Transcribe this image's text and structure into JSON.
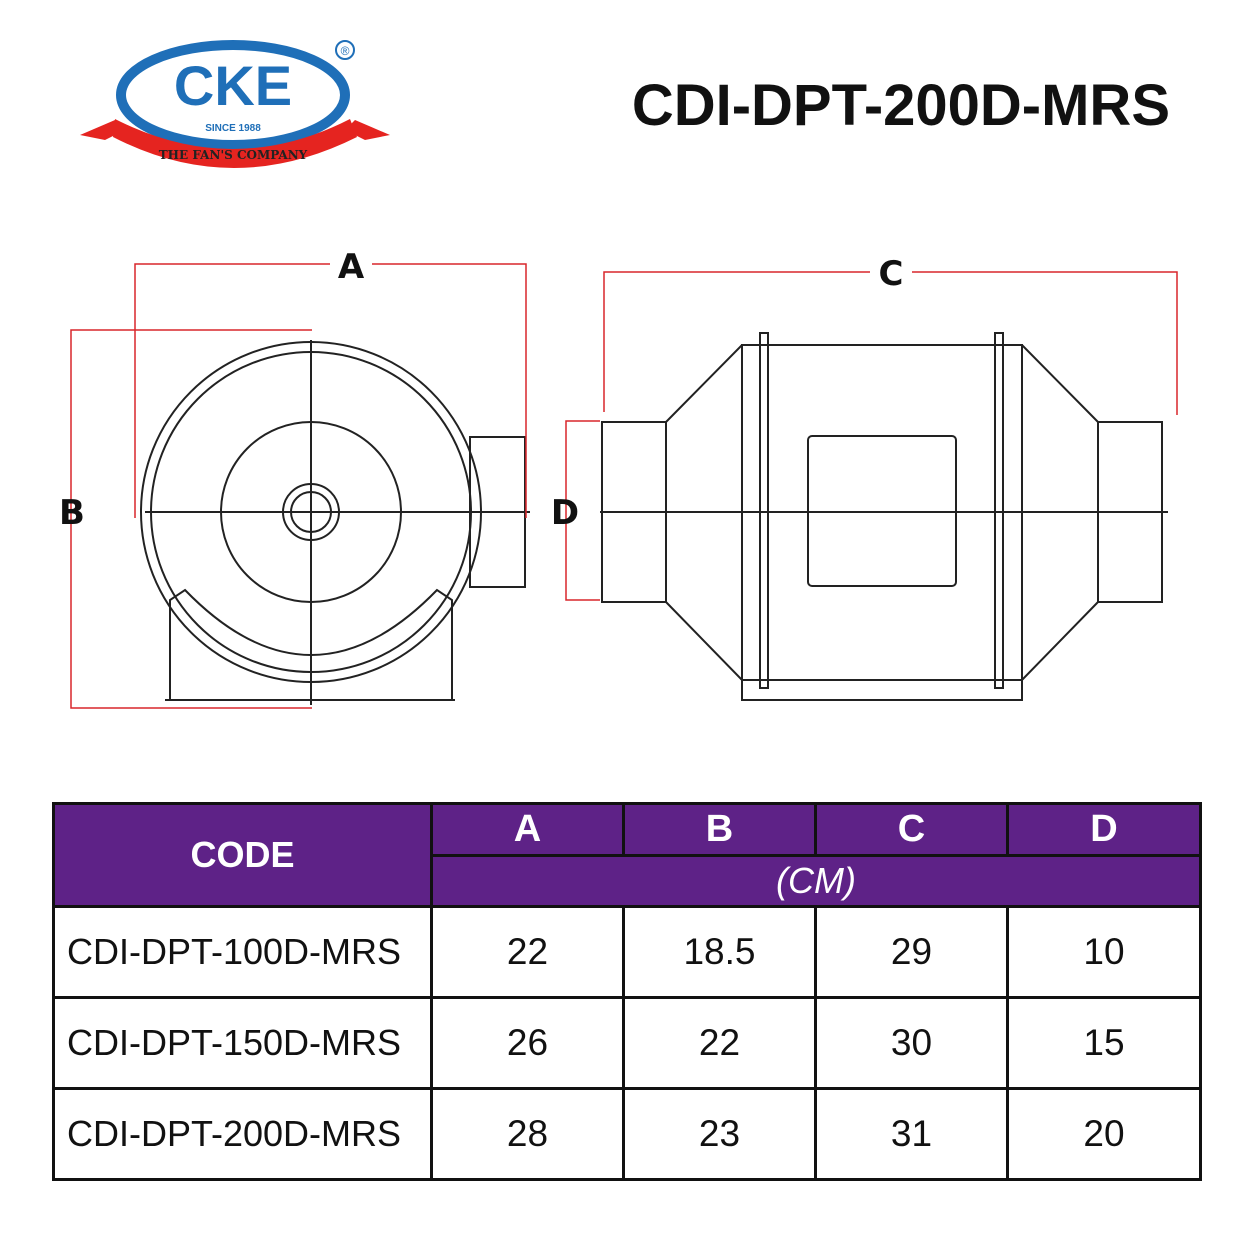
{
  "logo": {
    "brand": "CKE",
    "since": "SINCE 1988",
    "tagline": "THE FAN'S COMPANY",
    "registered": "®",
    "colors": {
      "blue": "#1f6fb8",
      "red": "#e52420"
    }
  },
  "title": "CDI-DPT-200D-MRS",
  "diagram": {
    "labels": {
      "a": "A",
      "b": "B",
      "c": "C",
      "d": "D"
    },
    "dimension_color": "#d9262b"
  },
  "table": {
    "header_color": "#5e2287",
    "code_header": "CODE",
    "columns": [
      "A",
      "B",
      "C",
      "D"
    ],
    "unit": "(CM)",
    "rows": [
      {
        "code": "CDI-DPT-100D-MRS",
        "values": [
          "22",
          "18.5",
          "29",
          "10"
        ]
      },
      {
        "code": "CDI-DPT-150D-MRS",
        "values": [
          "26",
          "22",
          "30",
          "15"
        ]
      },
      {
        "code": "CDI-DPT-200D-MRS",
        "values": [
          "28",
          "23",
          "31",
          "20"
        ]
      }
    ]
  }
}
